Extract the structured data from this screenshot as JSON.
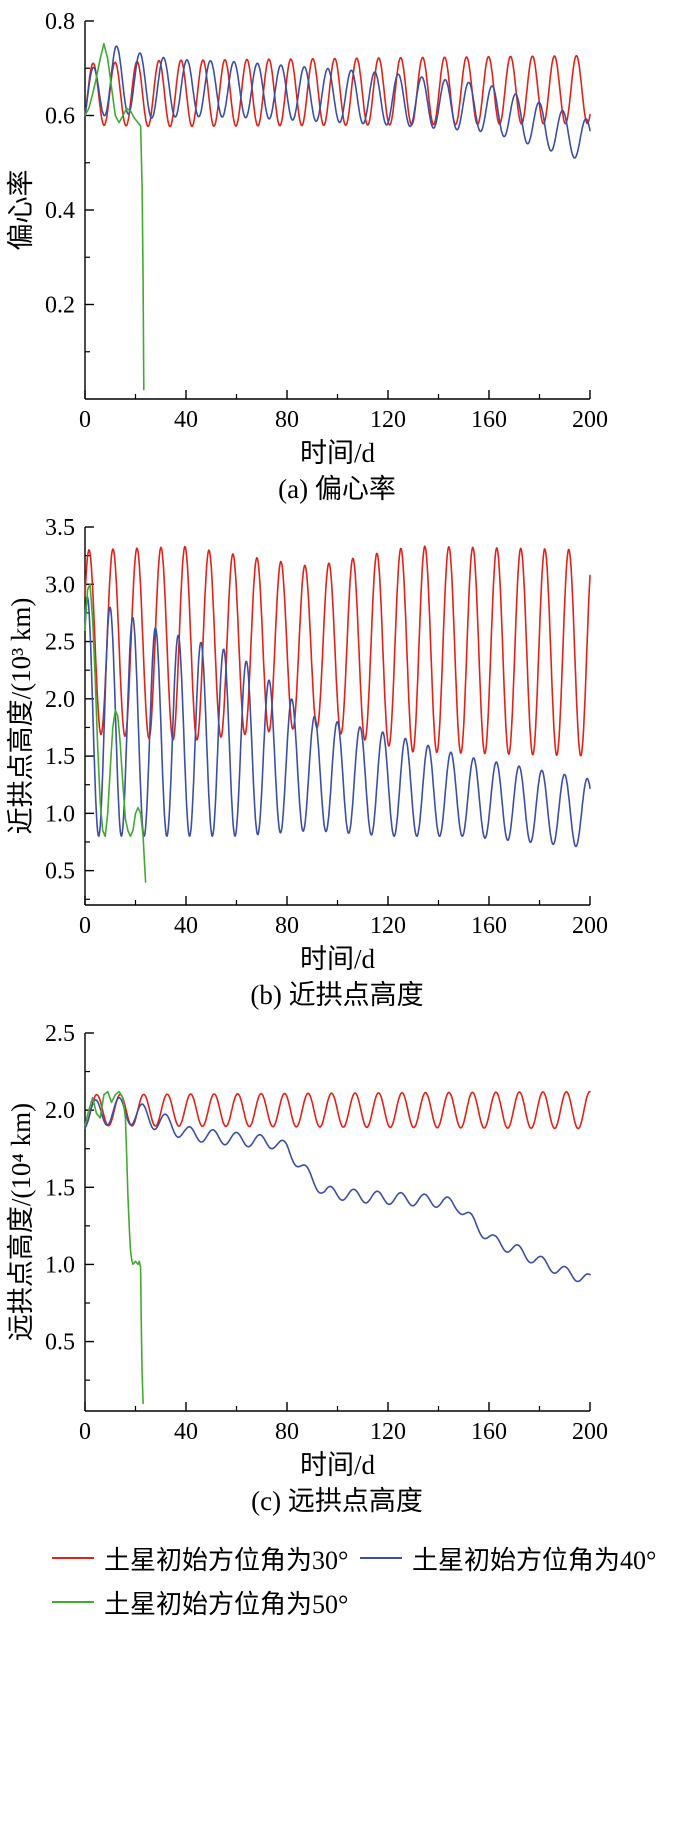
{
  "figure": {
    "background": "#ffffff",
    "legend": {
      "items": [
        {
          "label": "土星初始方位角为30°",
          "color": "#e32118"
        },
        {
          "label": "土星初始方位角为40°",
          "color": "#3b4fa5"
        },
        {
          "label": "土星初始方位角为50°",
          "color": "#41ab2f"
        }
      ]
    }
  },
  "chart_data": [
    {
      "type": "line",
      "id": "eccentricity",
      "caption": "(a) 偏心率",
      "xlabel": "时间/d",
      "ylabel": "偏心率",
      "xlim": [
        0,
        200
      ],
      "ylim": [
        0,
        0.8
      ],
      "xticks": [
        0,
        40,
        80,
        120,
        160,
        200
      ],
      "yticks": [
        0.2,
        0.4,
        0.6,
        0.8
      ],
      "ytick_decimals": 1,
      "grid": false,
      "series": [
        {
          "name": "土星初始方位角为30°",
          "color": "#e32118",
          "model": {
            "t0": 0,
            "t1": 200,
            "period": 8.7,
            "phase": -0.12,
            "center": [
              [
                0,
                0.645
              ],
              [
                200,
                0.655
              ]
            ],
            "amp": [
              [
                0,
                0.065
              ],
              [
                30,
                0.07
              ],
              [
                200,
                0.072
              ]
            ]
          }
        },
        {
          "name": "土星初始方位角为40°",
          "color": "#3b4fa5",
          "model": {
            "t0": 0,
            "t1": 200,
            "period": 9.3,
            "phase": -0.092,
            "center": [
              [
                0,
                0.63
              ],
              [
                12,
                0.68
              ],
              [
                25,
                0.66
              ],
              [
                60,
                0.655
              ],
              [
                120,
                0.635
              ],
              [
                160,
                0.615
              ],
              [
                200,
                0.545
              ]
            ],
            "amp": [
              [
                0,
                0.055
              ],
              [
                15,
                0.07
              ],
              [
                40,
                0.06
              ],
              [
                120,
                0.055
              ],
              [
                200,
                0.045
              ]
            ]
          }
        },
        {
          "name": "土星初始方位角为50°",
          "color": "#41ab2f",
          "points": [
            [
              0,
              0.6
            ],
            [
              1.5,
              0.615
            ],
            [
              3,
              0.645
            ],
            [
              4.5,
              0.68
            ],
            [
              6,
              0.72
            ],
            [
              7.5,
              0.752
            ],
            [
              9,
              0.72
            ],
            [
              10.5,
              0.66
            ],
            [
              12,
              0.6
            ],
            [
              13.5,
              0.585
            ],
            [
              15,
              0.6
            ],
            [
              16.5,
              0.615
            ],
            [
              18,
              0.61
            ],
            [
              19.5,
              0.595
            ],
            [
              21,
              0.585
            ],
            [
              22,
              0.578
            ],
            [
              22.6,
              0.45
            ],
            [
              23,
              0.25
            ],
            [
              23.3,
              0.02
            ]
          ]
        }
      ]
    },
    {
      "type": "line",
      "id": "periapsis-altitude",
      "caption": "(b) 近拱点高度",
      "xlabel": "时间/d",
      "ylabel": "近拱点高度/(10³ km)",
      "xlim": [
        0,
        200
      ],
      "ylim": [
        0.2,
        3.5
      ],
      "xticks": [
        0,
        40,
        80,
        120,
        160,
        200
      ],
      "yticks": [
        0.5,
        1.0,
        1.5,
        2.0,
        2.5,
        3.0,
        3.5
      ],
      "ytick_decimals": 1,
      "grid": false,
      "series": [
        {
          "name": "土星初始方位角为30°",
          "color": "#e32118",
          "model": {
            "t0": 0,
            "t1": 200,
            "period": 9.5,
            "phase": 0.083,
            "center": [
              [
                0,
                2.5
              ],
              [
                200,
                2.4
              ]
            ],
            "amp": [
              [
                0,
                0.8
              ],
              [
                40,
                0.85
              ],
              [
                90,
                0.7
              ],
              [
                130,
                0.9
              ],
              [
                200,
                0.9
              ]
            ]
          }
        },
        {
          "name": "土星初始方位角为40°",
          "color": "#3b4fa5",
          "model": {
            "t0": 0,
            "t1": 200,
            "period": 9.0,
            "phase": 0.148,
            "center": [
              [
                0,
                1.85
              ],
              [
                30,
                1.7
              ],
              [
                60,
                1.6
              ],
              [
                90,
                1.35
              ],
              [
                120,
                1.25
              ],
              [
                150,
                1.15
              ],
              [
                200,
                1.0
              ]
            ],
            "amp": [
              [
                0,
                1.05
              ],
              [
                30,
                0.9
              ],
              [
                60,
                0.8
              ],
              [
                90,
                0.5
              ],
              [
                120,
                0.45
              ],
              [
                150,
                0.35
              ],
              [
                200,
                0.3
              ]
            ]
          }
        },
        {
          "name": "土星初始方位角为50°",
          "color": "#41ab2f",
          "points": [
            [
              0,
              2.6
            ],
            [
              1,
              2.95
            ],
            [
              2,
              3.0
            ],
            [
              3,
              2.7
            ],
            [
              4,
              2.2
            ],
            [
              5,
              1.6
            ],
            [
              6,
              1.1
            ],
            [
              7,
              0.85
            ],
            [
              8,
              0.8
            ],
            [
              9,
              1.0
            ],
            [
              10,
              1.4
            ],
            [
              11,
              1.75
            ],
            [
              12,
              1.9
            ],
            [
              13,
              1.85
            ],
            [
              14,
              1.6
            ],
            [
              15,
              1.25
            ],
            [
              16,
              0.95
            ],
            [
              17,
              0.85
            ],
            [
              18,
              0.8
            ],
            [
              19,
              0.85
            ],
            [
              20,
              1.0
            ],
            [
              21,
              1.05
            ],
            [
              22,
              1.0
            ],
            [
              23,
              0.8
            ],
            [
              23.5,
              0.6
            ],
            [
              24,
              0.4
            ]
          ]
        }
      ]
    },
    {
      "type": "line",
      "id": "apoapsis-altitude",
      "caption": "(c) 远拱点高度",
      "xlabel": "时间/d",
      "ylabel": "远拱点高度/(10⁴ km)",
      "xlim": [
        0,
        200
      ],
      "ylim": [
        0.05,
        2.5
      ],
      "xticks": [
        0,
        40,
        80,
        120,
        160,
        200
      ],
      "yticks": [
        0.5,
        1.0,
        1.5,
        2.0,
        2.5
      ],
      "ytick_decimals": 1,
      "grid": false,
      "series": [
        {
          "name": "土星初始方位角为30°",
          "color": "#e32118",
          "model": {
            "t0": 0,
            "t1": 200,
            "period": 9.3,
            "phase": -0.25,
            "center": [
              [
                0,
                2.0
              ],
              [
                200,
                2.0
              ]
            ],
            "amp": [
              [
                0,
                0.1
              ],
              [
                200,
                0.12
              ]
            ]
          }
        },
        {
          "name": "土星初始方位角为40°",
          "color": "#3b4fa5",
          "model": {
            "t0": 0,
            "t1": 200,
            "period": 9.3,
            "phase": -0.2,
            "center": [
              [
                0,
                1.97
              ],
              [
                15,
                2.0
              ],
              [
                30,
                1.93
              ],
              [
                40,
                1.85
              ],
              [
                55,
                1.82
              ],
              [
                75,
                1.79
              ],
              [
                80,
                1.75
              ],
              [
                90,
                1.55
              ],
              [
                95,
                1.47
              ],
              [
                110,
                1.44
              ],
              [
                140,
                1.41
              ],
              [
                148,
                1.38
              ],
              [
                155,
                1.25
              ],
              [
                162,
                1.15
              ],
              [
                170,
                1.1
              ],
              [
                180,
                1.02
              ],
              [
                190,
                0.95
              ],
              [
                200,
                0.9
              ]
            ],
            "amp": [
              [
                0,
                0.09
              ],
              [
                20,
                0.08
              ],
              [
                40,
                0.045
              ],
              [
                90,
                0.04
              ],
              [
                150,
                0.04
              ],
              [
                200,
                0.035
              ]
            ]
          }
        },
        {
          "name": "土星初始方位角为50°",
          "color": "#41ab2f",
          "points": [
            [
              0,
              1.9
            ],
            [
              1.5,
              2.0
            ],
            [
              3,
              2.08
            ],
            [
              4.5,
              1.98
            ],
            [
              6,
              1.95
            ],
            [
              7.5,
              2.1
            ],
            [
              9,
              2.12
            ],
            [
              10.5,
              2.05
            ],
            [
              12,
              2.1
            ],
            [
              13.5,
              2.12
            ],
            [
              15,
              2.08
            ],
            [
              16,
              1.95
            ],
            [
              16.5,
              1.7
            ],
            [
              17,
              1.45
            ],
            [
              17.5,
              1.25
            ],
            [
              18,
              1.1
            ],
            [
              18.5,
              1.03
            ],
            [
              19,
              1.0
            ],
            [
              20,
              1.02
            ],
            [
              21,
              1.0
            ],
            [
              21.5,
              1.02
            ],
            [
              22,
              0.98
            ],
            [
              22.3,
              0.6
            ],
            [
              22.6,
              0.3
            ],
            [
              23,
              0.1
            ]
          ]
        }
      ]
    }
  ]
}
